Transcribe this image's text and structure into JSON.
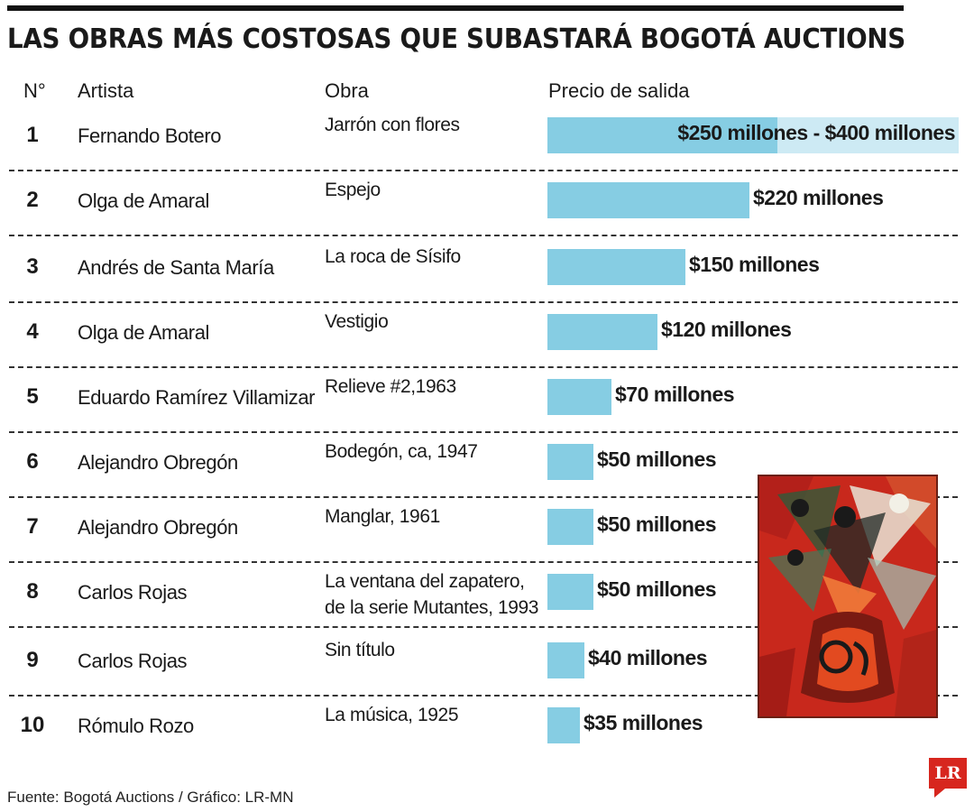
{
  "title": "LAS OBRAS MÁS COSTOSAS QUE SUBASTARÁ BOGOTÁ AUCTIONS",
  "headers": {
    "num": "N°",
    "artist": "Artista",
    "work": "Obra",
    "price": "Precio de salida"
  },
  "chart_data": {
    "type": "bar",
    "orientation": "horizontal",
    "title": "LAS OBRAS MÁS COSTOSAS QUE SUBASTARÁ BOGOTÁ AUCTIONS",
    "unit": "millones",
    "rows": [
      {
        "num": "1",
        "artist": "Fernando Botero",
        "work": "Jarrón con flores",
        "value": 250,
        "value_high": 400,
        "label": "$250 millones - $400 millones"
      },
      {
        "num": "2",
        "artist": "Olga de Amaral",
        "work": "Espejo",
        "value": 220,
        "label": "$220 millones"
      },
      {
        "num": "3",
        "artist": "Andrés de Santa María",
        "work": "La roca de Sísifo",
        "value": 150,
        "label": "$150 millones"
      },
      {
        "num": "4",
        "artist": "Olga de Amaral",
        "work": "Vestigio",
        "value": 120,
        "label": "$120 millones"
      },
      {
        "num": "5",
        "artist": "Eduardo Ramírez Villamizar",
        "work": "Relieve #2,1963",
        "value": 70,
        "label": "$70 millones"
      },
      {
        "num": "6",
        "artist": "Alejandro Obregón",
        "work": "Bodegón, ca, 1947",
        "value": 50,
        "label": "$50 millones"
      },
      {
        "num": "7",
        "artist": "Alejandro Obregón",
        "work": "Manglar, 1961",
        "value": 50,
        "label": "$50 millones"
      },
      {
        "num": "8",
        "artist": "Carlos Rojas",
        "work": "La ventana del zapatero,\nde la serie Mutantes, 1993",
        "value": 50,
        "label": "$50 millones"
      },
      {
        "num": "9",
        "artist": "Carlos Rojas",
        "work": "Sin título",
        "value": 40,
        "label": "$40 millones"
      },
      {
        "num": "10",
        "artist": "Rómulo Rozo",
        "work": "La música, 1925",
        "value": 35,
        "label": "$35 millones"
      }
    ]
  },
  "colors": {
    "bar": "#86cde3",
    "bar_range": "#cdeaf4",
    "accent": "#d7261e"
  },
  "image": {
    "icon": "painting-still-life-flowers-icon"
  },
  "footer": "Fuente: Bogotá Auctions / Gráfico: LR-MN",
  "logo": "LR"
}
